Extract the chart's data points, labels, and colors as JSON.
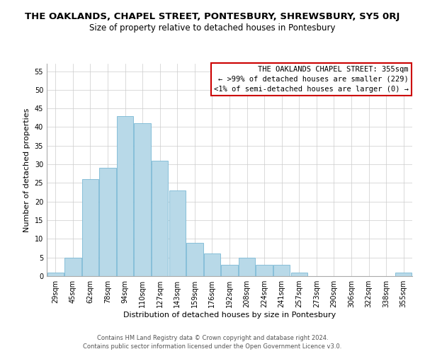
{
  "title": "THE OAKLANDS, CHAPEL STREET, PONTESBURY, SHREWSBURY, SY5 0RJ",
  "subtitle": "Size of property relative to detached houses in Pontesbury",
  "xlabel": "Distribution of detached houses by size in Pontesbury",
  "ylabel": "Number of detached properties",
  "bar_labels": [
    "29sqm",
    "45sqm",
    "62sqm",
    "78sqm",
    "94sqm",
    "110sqm",
    "127sqm",
    "143sqm",
    "159sqm",
    "176sqm",
    "192sqm",
    "208sqm",
    "224sqm",
    "241sqm",
    "257sqm",
    "273sqm",
    "290sqm",
    "306sqm",
    "322sqm",
    "338sqm",
    "355sqm"
  ],
  "bar_values": [
    1,
    5,
    26,
    29,
    43,
    41,
    31,
    23,
    9,
    6,
    3,
    5,
    3,
    3,
    1,
    0,
    0,
    0,
    0,
    0,
    1
  ],
  "bar_color": "#b8d9e8",
  "bar_edge_color": "#7ab8d4",
  "ylim": [
    0,
    57
  ],
  "yticks": [
    0,
    5,
    10,
    15,
    20,
    25,
    30,
    35,
    40,
    45,
    50,
    55
  ],
  "legend_title": "THE OAKLANDS CHAPEL STREET: 355sqm",
  "legend_line1": "← >99% of detached houses are smaller (229)",
  "legend_line2": "<1% of semi-detached houses are larger (0) →",
  "legend_box_color": "#ffffff",
  "legend_border_color": "#cc0000",
  "footer_line1": "Contains HM Land Registry data © Crown copyright and database right 2024.",
  "footer_line2": "Contains public sector information licensed under the Open Government Licence v3.0.",
  "background_color": "#ffffff",
  "grid_color": "#cccccc",
  "title_fontsize": 9.5,
  "subtitle_fontsize": 8.5,
  "axis_label_fontsize": 8,
  "tick_fontsize": 7,
  "legend_fontsize": 7.5,
  "footer_fontsize": 6.0
}
